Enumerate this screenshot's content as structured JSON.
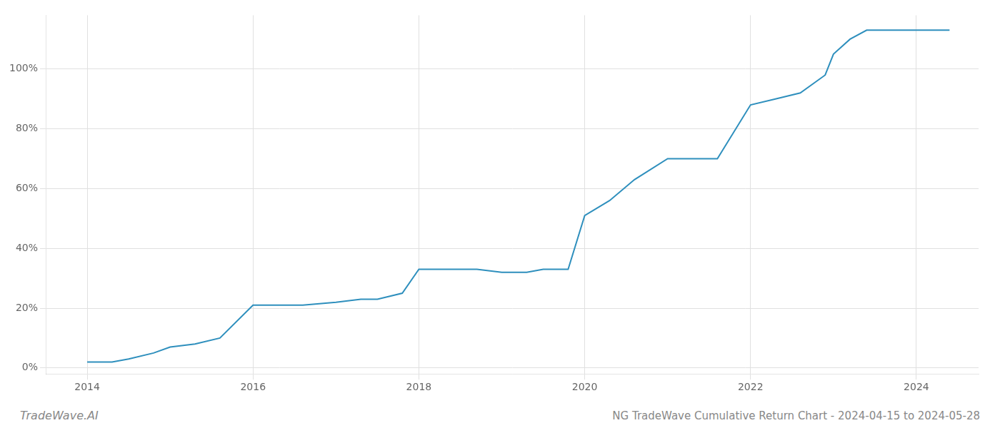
{
  "chart_data": {
    "type": "line",
    "title": "NG TradeWave Cumulative Return Chart - 2024-04-15 to 2024-05-28",
    "annotations": [
      "TradeWave.AI"
    ],
    "x": [
      2014.0,
      2014.3,
      2014.5,
      2014.8,
      2015.0,
      2015.3,
      2015.6,
      2016.0,
      2016.3,
      2016.6,
      2017.0,
      2017.3,
      2017.5,
      2017.8,
      2018.0,
      2018.2,
      2018.4,
      2018.7,
      2019.0,
      2019.3,
      2019.5,
      2019.8,
      2020.0,
      2020.3,
      2020.6,
      2021.0,
      2021.3,
      2021.6,
      2022.0,
      2022.3,
      2022.6,
      2022.9,
      2023.0,
      2023.2,
      2023.4,
      2023.6,
      2024.0,
      2024.4
    ],
    "values": [
      0.02,
      0.02,
      0.03,
      0.05,
      0.07,
      0.08,
      0.1,
      0.21,
      0.21,
      0.21,
      0.22,
      0.23,
      0.23,
      0.25,
      0.33,
      0.33,
      0.33,
      0.33,
      0.32,
      0.32,
      0.33,
      0.33,
      0.51,
      0.56,
      0.63,
      0.7,
      0.7,
      0.7,
      0.88,
      0.9,
      0.92,
      0.98,
      1.05,
      1.1,
      1.13,
      1.13,
      1.13,
      1.13
    ],
    "color": "#2e8fbd",
    "xlim": [
      2013.5,
      2024.75
    ],
    "ylim": [
      -0.02,
      1.18
    ],
    "xticks": [
      2014,
      2016,
      2018,
      2020,
      2022,
      2024
    ],
    "yticks": [
      {
        "value": 0.0,
        "label": "0%"
      },
      {
        "value": 0.2,
        "label": "20%"
      },
      {
        "value": 0.4,
        "label": "40%"
      },
      {
        "value": 0.6,
        "label": "60%"
      },
      {
        "value": 0.8,
        "label": "80%"
      },
      {
        "value": 1.0,
        "label": "100%"
      }
    ],
    "grid": true
  }
}
